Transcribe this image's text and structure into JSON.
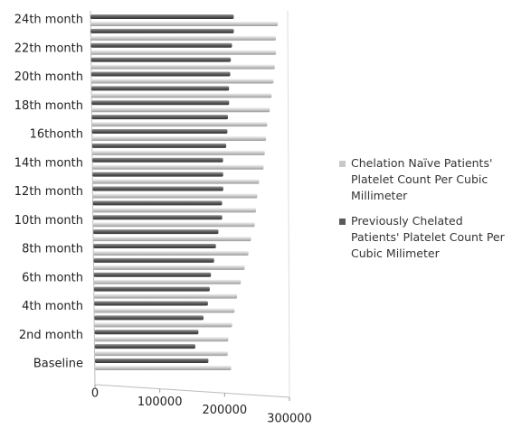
{
  "chart_data": {
    "type": "bar",
    "orientation": "horizontal",
    "categories": [
      "Baseline",
      null,
      "2nd month",
      null,
      "4th month",
      null,
      "6th month",
      null,
      "8th month",
      null,
      "10th month",
      null,
      "12th month",
      null,
      "14th month",
      null,
      "16thonth",
      null,
      "18th month",
      null,
      "20th month",
      null,
      "22th month",
      null,
      "24th month"
    ],
    "series": [
      {
        "name": "Chelation Naïve Patients' Platelet Count Per Cubic Millimeter",
        "color": "#c8c8c8",
        "values": [
          210000,
          205000,
          206000,
          212000,
          216000,
          220000,
          226000,
          232000,
          238000,
          242000,
          248000,
          250000,
          252000,
          255000,
          262000,
          264000,
          266000,
          268000,
          272000,
          275000,
          278000,
          280000,
          282000,
          282000,
          285000
        ]
      },
      {
        "name": "Previously Chelated Patients' Platelet Count Per Cubic Milimeter",
        "color": "#5a5a5a",
        "values": [
          175000,
          155000,
          160000,
          168000,
          175000,
          178000,
          180000,
          185000,
          188000,
          192000,
          198000,
          198000,
          200000,
          200000,
          200000,
          205000,
          207000,
          208000,
          210000,
          210000,
          212000,
          213000,
          215000,
          218000,
          218000
        ]
      }
    ],
    "xlim": [
      0,
      300000
    ],
    "xticks": [
      0,
      100000,
      200000,
      300000
    ],
    "legend": "right"
  }
}
